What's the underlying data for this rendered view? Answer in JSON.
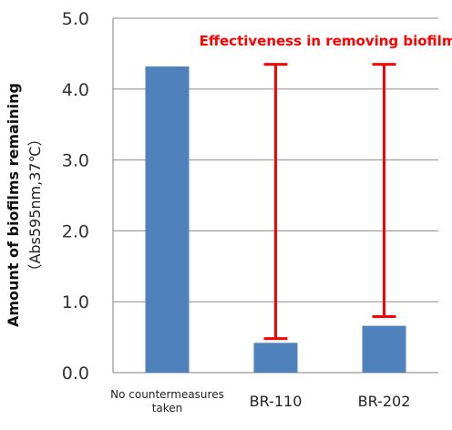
{
  "chart_data": {
    "type": "bar",
    "categories": [
      "No countermeasures\ntaken",
      "BR-110",
      "BR-202"
    ],
    "values": [
      4.32,
      0.42,
      0.66
    ],
    "ylabel": "Amount of biofilms remaining",
    "ylabel_sub": "（Abs595nm,37℃）",
    "ylim": [
      0,
      5
    ],
    "yticks": [
      "0.0",
      "1.0",
      "2.0",
      "3.0",
      "4.0",
      "5.0"
    ],
    "grid": true,
    "bar_color": "#4f81bd",
    "annotation": {
      "text": "Effectiveness in removing biofilms",
      "color": "#ff0000",
      "ranges": [
        {
          "category": "BR-110",
          "from": 4.35,
          "to": 0.48
        },
        {
          "category": "BR-202",
          "from": 4.35,
          "to": 0.79
        }
      ]
    }
  }
}
